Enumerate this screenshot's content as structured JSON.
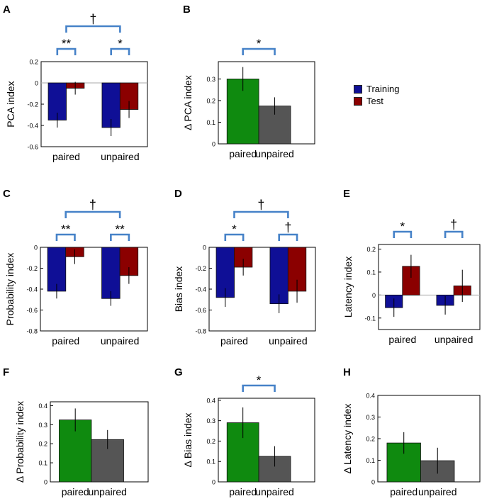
{
  "colors": {
    "training": "#0f0f96",
    "test": "#8b0000",
    "paired": "#0f8a0f",
    "unpaired": "#555555",
    "bracket": "#4682c8"
  },
  "legend": {
    "items": [
      {
        "label": "Training",
        "color": "#0f0f96"
      },
      {
        "label": "Test",
        "color": "#8b0000"
      }
    ]
  },
  "chart_data": [
    {
      "panel": "A",
      "type": "bar",
      "ylabel": "PCA index",
      "categories": [
        "paired",
        "unpaired"
      ],
      "ylim": [
        -0.6,
        0.2
      ],
      "yticks": [
        0.2,
        0,
        -0.2,
        -0.4,
        -0.6
      ],
      "ytick_labels": [
        "0.2",
        "0",
        "-0.2",
        "-0.4",
        "-0.6"
      ],
      "series": [
        {
          "name": "Training",
          "values": [
            -0.35,
            -0.42
          ],
          "errors": [
            0.07,
            0.08
          ]
        },
        {
          "name": "Test",
          "values": [
            -0.05,
            -0.25
          ],
          "errors": [
            0.06,
            0.08
          ]
        }
      ],
      "annotations": [
        {
          "level": 1,
          "from": 0,
          "to": 1,
          "label": "**"
        },
        {
          "level": 1,
          "from": 2,
          "to": 3,
          "label": "*"
        },
        {
          "level": 2,
          "from": 0.5,
          "to": 2.5,
          "label": "†"
        }
      ]
    },
    {
      "panel": "B",
      "type": "bar",
      "ylabel": "Δ PCA index",
      "categories": [
        "paired",
        "unpaired"
      ],
      "ylim": [
        0,
        0.38
      ],
      "yticks": [
        0,
        0.1,
        0.2,
        0.3
      ],
      "ytick_labels": [
        "0",
        "0.1",
        "0.2",
        "0.3"
      ],
      "values": [
        0.3,
        0.175
      ],
      "errors": [
        0.055,
        0.04
      ],
      "annotations": [
        {
          "level": 1,
          "from": 0,
          "to": 1,
          "label": "*"
        }
      ]
    },
    {
      "panel": "C",
      "type": "bar",
      "ylabel": "Probability index",
      "categories": [
        "paired",
        "unpaired"
      ],
      "ylim": [
        -0.8,
        0
      ],
      "yticks": [
        0,
        -0.2,
        -0.4,
        -0.6,
        -0.8
      ],
      "ytick_labels": [
        "0",
        "-0.2",
        "-0.4",
        "-0.6",
        "-0.8"
      ],
      "series": [
        {
          "name": "Training",
          "values": [
            -0.42,
            -0.49
          ],
          "errors": [
            0.07,
            0.07
          ]
        },
        {
          "name": "Test",
          "values": [
            -0.09,
            -0.27
          ],
          "errors": [
            0.07,
            0.08
          ]
        }
      ],
      "annotations": [
        {
          "level": 1,
          "from": 0,
          "to": 1,
          "label": "**"
        },
        {
          "level": 1,
          "from": 2,
          "to": 3,
          "label": "**"
        },
        {
          "level": 2,
          "from": 0.5,
          "to": 2.5,
          "label": "†"
        }
      ]
    },
    {
      "panel": "D",
      "type": "bar",
      "ylabel": "Bias index",
      "categories": [
        "paired",
        "unpaired"
      ],
      "ylim": [
        -0.8,
        0
      ],
      "yticks": [
        0,
        -0.2,
        -0.4,
        -0.6,
        -0.8
      ],
      "ytick_labels": [
        "0",
        "-0.2",
        "-0.4",
        "-0.6",
        "-0.8"
      ],
      "series": [
        {
          "name": "Training",
          "values": [
            -0.48,
            -0.54
          ],
          "errors": [
            0.09,
            0.09
          ]
        },
        {
          "name": "Test",
          "values": [
            -0.19,
            -0.42
          ],
          "errors": [
            0.08,
            0.11
          ]
        }
      ],
      "annotations": [
        {
          "level": 1,
          "from": 0,
          "to": 1,
          "label": "*"
        },
        {
          "level": 1,
          "from": 2,
          "to": 3,
          "label": "†"
        },
        {
          "level": 2,
          "from": 0.5,
          "to": 2.5,
          "label": "†"
        }
      ]
    },
    {
      "panel": "E",
      "type": "bar",
      "ylabel": "Latency index",
      "categories": [
        "paired",
        "unpaired"
      ],
      "ylim": [
        -0.15,
        0.22
      ],
      "yticks": [
        0.2,
        0.1,
        0,
        -0.1
      ],
      "ytick_labels": [
        "0.2",
        "0.1",
        "0",
        "-0.1"
      ],
      "series": [
        {
          "name": "Training",
          "values": [
            -0.055,
            -0.045
          ],
          "errors": [
            0.04,
            0.04
          ]
        },
        {
          "name": "Test",
          "values": [
            0.125,
            0.04
          ],
          "errors": [
            0.05,
            0.07
          ]
        }
      ],
      "annotations": [
        {
          "level": 1,
          "from": 0,
          "to": 1,
          "label": "*"
        },
        {
          "level": 1,
          "from": 2,
          "to": 3,
          "label": "†"
        }
      ]
    },
    {
      "panel": "F",
      "type": "bar",
      "ylabel": "Δ Probability index",
      "categories": [
        "paired",
        "unpaired"
      ],
      "ylim": [
        0,
        0.42
      ],
      "yticks": [
        0,
        0.1,
        0.2,
        0.3,
        0.4
      ],
      "ytick_labels": [
        "0",
        "0.1",
        "0.2",
        "0.3",
        "0.4"
      ],
      "values": [
        0.325,
        0.222
      ],
      "errors": [
        0.06,
        0.05
      ],
      "annotations": []
    },
    {
      "panel": "G",
      "type": "bar",
      "ylabel": "Δ Bias index",
      "categories": [
        "paired",
        "unpaired"
      ],
      "ylim": [
        0,
        0.41
      ],
      "yticks": [
        0,
        0.1,
        0.2,
        0.3,
        0.4
      ],
      "ytick_labels": [
        "0",
        "0.1",
        "0.2",
        "0.3",
        "0.4"
      ],
      "values": [
        0.29,
        0.125
      ],
      "errors": [
        0.075,
        0.05
      ],
      "annotations": [
        {
          "level": 1,
          "from": 0,
          "to": 1,
          "label": "*"
        }
      ]
    },
    {
      "panel": "H",
      "type": "bar",
      "ylabel": "Δ Latency index",
      "categories": [
        "paired",
        "unpaired"
      ],
      "ylim": [
        0,
        0.4
      ],
      "yticks": [
        0,
        0.1,
        0.2,
        0.3,
        0.4
      ],
      "ytick_labels": [
        "0",
        "0.1",
        "0.2",
        "0.3",
        "0.4"
      ],
      "values": [
        0.18,
        0.098
      ],
      "errors": [
        0.05,
        0.06
      ],
      "annotations": []
    }
  ]
}
